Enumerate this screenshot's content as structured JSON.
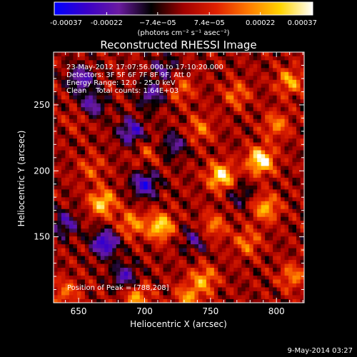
{
  "chart_data": {
    "type": "heatmap",
    "title": "Reconstructed RHESSI Image",
    "xlabel": "Heliocentric X (arcsec)",
    "ylabel": "Heliocentric Y (arcsec)",
    "xlim": [
      631,
      821
    ],
    "ylim": [
      100,
      290
    ],
    "x_ticks": [
      650,
      700,
      750,
      800
    ],
    "y_ticks": [
      150,
      200,
      250
    ],
    "colorbar": {
      "range": [
        -0.00037,
        0.00037
      ],
      "ticks": [
        -0.00037,
        -0.00022,
        -7.4e-05,
        7.4e-05,
        0.00022,
        0.00037
      ],
      "tick_labels": [
        "-0.00037",
        "-0.00022",
        "−7.4e−05",
        "7.4e−05",
        "0.00022",
        "0.00037"
      ],
      "units": "(photons cm⁻² s⁻¹ asec⁻²)",
      "colors": [
        "#0000ff",
        "#3a00c8",
        "#6a1aa0",
        "#000000",
        "#a00000",
        "#e02000",
        "#ff7a00",
        "#ffd400",
        "#ffffff"
      ]
    },
    "annotations": [
      "23-May-2012 17:07:56.000 to 17:10:20.000",
      "Detectors: 3F 5F 6F 7F 8F 9F, Att 0",
      "Energy Range: 12.0 - 25.0 keV",
      "Clean    Total counts: 1.64E+03"
    ],
    "peak_label": "Position of Peak = [788,208]",
    "peak_position": [
      788,
      208
    ],
    "hotspots": [
      {
        "x": 788,
        "y": 208,
        "value": 0.00037
      },
      {
        "x": 758,
        "y": 196,
        "value": 0.00033
      },
      {
        "x": 668,
        "y": 176,
        "value": 0.00029
      },
      {
        "x": 712,
        "y": 158,
        "value": 0.00031
      },
      {
        "x": 792,
        "y": 172,
        "value": 0.00024
      },
      {
        "x": 752,
        "y": 158,
        "value": 0.00018
      },
      {
        "x": 745,
        "y": 118,
        "value": 0.00022
      },
      {
        "x": 733,
        "y": 104,
        "value": 0.0002
      },
      {
        "x": 694,
        "y": 104,
        "value": 0.00022
      },
      {
        "x": 778,
        "y": 146,
        "value": 0.00017
      },
      {
        "x": 810,
        "y": 268,
        "value": 0.00022
      },
      {
        "x": 770,
        "y": 258,
        "value": 0.00016
      },
      {
        "x": 728,
        "y": 262,
        "value": 0.00014
      },
      {
        "x": 640,
        "y": 108,
        "value": 0.00016
      },
      {
        "x": 812,
        "y": 120,
        "value": 0.00018
      },
      {
        "x": 660,
        "y": 202,
        "value": 0.00012
      },
      {
        "x": 702,
        "y": 214,
        "value": 0.0001
      },
      {
        "x": 742,
        "y": 232,
        "value": 0.00016
      },
      {
        "x": 690,
        "y": 160,
        "value": 0.0002
      },
      {
        "x": 650,
        "y": 240,
        "value": 8e-05
      },
      {
        "x": 800,
        "y": 235,
        "value": 0.00018
      }
    ],
    "coldspots": [
      {
        "x": 652,
        "y": 270,
        "value": -0.00024
      },
      {
        "x": 690,
        "y": 230,
        "value": -0.00026
      },
      {
        "x": 670,
        "y": 145,
        "value": -0.00032
      },
      {
        "x": 700,
        "y": 190,
        "value": -0.00028
      },
      {
        "x": 685,
        "y": 120,
        "value": -0.00022
      },
      {
        "x": 640,
        "y": 160,
        "value": -0.0002
      },
      {
        "x": 722,
        "y": 220,
        "value": -0.00018
      },
      {
        "x": 715,
        "y": 278,
        "value": -0.00016
      },
      {
        "x": 738,
        "y": 148,
        "value": -0.00016
      },
      {
        "x": 773,
        "y": 182,
        "value": -0.00012
      },
      {
        "x": 660,
        "y": 250,
        "value": -0.00022
      },
      {
        "x": 705,
        "y": 258,
        "value": -0.0002
      }
    ]
  },
  "footer": {
    "timestamp": "9-May-2014 03:27"
  }
}
